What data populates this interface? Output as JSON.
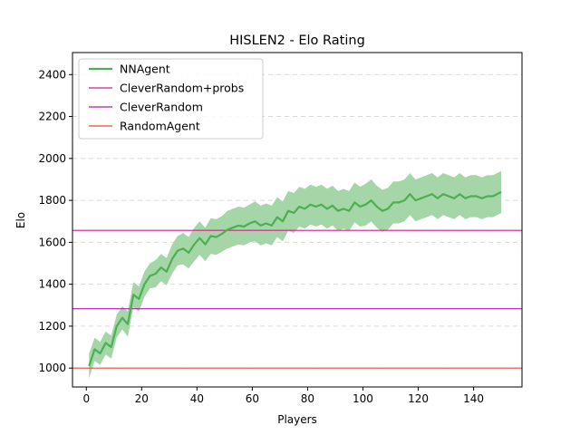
{
  "chart_data": {
    "type": "line",
    "title": "HISLEN2 - Elo Rating",
    "xlabel": "Players",
    "ylabel": "Elo",
    "xlim": [
      -5,
      157.5
    ],
    "ylim": [
      910,
      2505
    ],
    "x_ticks": [
      0,
      20,
      40,
      60,
      80,
      100,
      120,
      140
    ],
    "y_ticks": [
      1000,
      1200,
      1400,
      1600,
      1800,
      2000,
      2200,
      2400
    ],
    "grid": "horizontal-dashed",
    "legend_position": "top-left",
    "series": [
      {
        "name": "NNAgent",
        "color": "#4caf50",
        "band_color": "#a5d6a7",
        "x": [
          1,
          3,
          5,
          7,
          9,
          11,
          13,
          15,
          17,
          19,
          21,
          23,
          25,
          27,
          29,
          31,
          33,
          35,
          37,
          39,
          41,
          43,
          45,
          47,
          49,
          51,
          53,
          55,
          57,
          59,
          61,
          63,
          65,
          67,
          69,
          71,
          73,
          75,
          77,
          79,
          81,
          83,
          85,
          87,
          89,
          91,
          93,
          95,
          97,
          99,
          101,
          103,
          105,
          107,
          109,
          111,
          113,
          115,
          117,
          119,
          121,
          123,
          125,
          127,
          129,
          131,
          133,
          135,
          137,
          139,
          141,
          143,
          145,
          147,
          150
        ],
        "y": [
          1010,
          1090,
          1070,
          1120,
          1100,
          1200,
          1240,
          1210,
          1350,
          1330,
          1400,
          1440,
          1450,
          1480,
          1460,
          1520,
          1560,
          1570,
          1550,
          1590,
          1620,
          1590,
          1630,
          1625,
          1640,
          1660,
          1670,
          1680,
          1675,
          1690,
          1700,
          1680,
          1690,
          1680,
          1720,
          1700,
          1750,
          1740,
          1770,
          1760,
          1780,
          1770,
          1780,
          1760,
          1775,
          1750,
          1760,
          1750,
          1790,
          1770,
          1780,
          1800,
          1770,
          1750,
          1760,
          1790,
          1790,
          1800,
          1830,
          1800,
          1810,
          1820,
          1830,
          1810,
          1830,
          1820,
          1810,
          1830,
          1810,
          1820,
          1820,
          1810,
          1820,
          1820,
          1840
        ],
        "band_half_width": [
          60,
          55,
          55,
          55,
          55,
          55,
          55,
          60,
          60,
          60,
          60,
          60,
          65,
          65,
          65,
          70,
          70,
          75,
          75,
          80,
          80,
          80,
          85,
          85,
          85,
          90,
          90,
          90,
          90,
          90,
          95,
          95,
          95,
          95,
          95,
          95,
          95,
          95,
          95,
          95,
          95,
          95,
          95,
          95,
          95,
          95,
          95,
          95,
          95,
          95,
          100,
          100,
          100,
          100,
          100,
          100,
          100,
          100,
          100,
          100,
          100,
          100,
          100,
          100,
          100,
          100,
          100,
          100,
          100,
          100,
          100,
          100,
          100,
          100,
          100
        ]
      },
      {
        "name": "CleverRandom+probs",
        "color": "#d81b8a",
        "constant": 1657
      },
      {
        "name": "CleverRandom",
        "color": "#b019b0",
        "constant": 1283
      },
      {
        "name": "RandomAgent",
        "color": "#e84c3d",
        "constant": 1000
      }
    ]
  }
}
